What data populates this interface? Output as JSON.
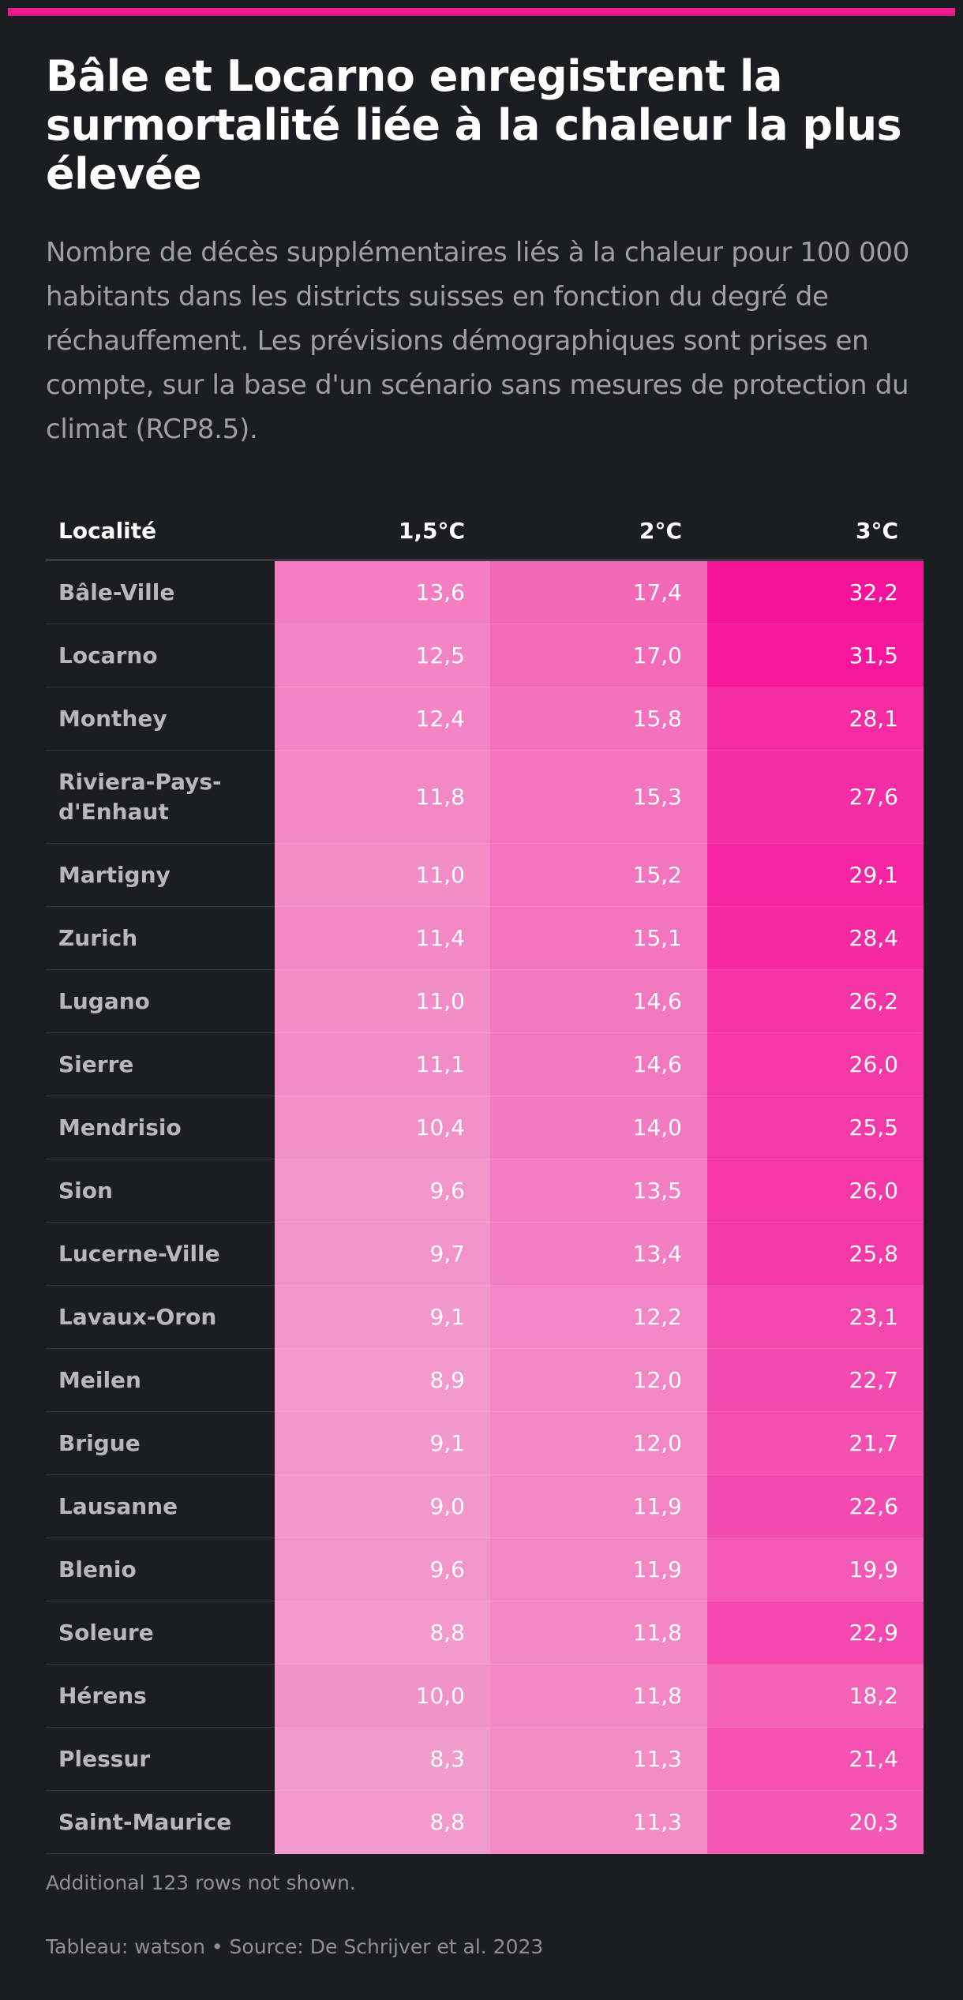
{
  "header": {
    "title": "Bâle et Locarno enregistrent la surmortalité liée à la chaleur la plus élevée",
    "subtitle": "Nombre de décès supplémentaires liés à la chaleur pour 100 000 habitants dans les districts suisses en fonction du degré de réchauffement. Les prévisions démographiques sont prises en compte, sur la base d'un scénario sans mesures de protection du climat (RCP8.5)."
  },
  "colors": {
    "accent": "#ed1a8c",
    "background": "#1c1d20",
    "heat_min": "#f29cce",
    "heat_max": "#f6139a"
  },
  "chart_data": {
    "type": "table",
    "columns": [
      "Localité",
      "1,5°C",
      "2°C",
      "3°C"
    ],
    "rows": [
      {
        "name": "Bâle-Ville",
        "values": [
          "13,6",
          "17,4",
          "32,2"
        ]
      },
      {
        "name": "Locarno",
        "values": [
          "12,5",
          "17,0",
          "31,5"
        ]
      },
      {
        "name": "Monthey",
        "values": [
          "12,4",
          "15,8",
          "28,1"
        ]
      },
      {
        "name": "Riviera-Pays-d'Enhaut",
        "values": [
          "11,8",
          "15,3",
          "27,6"
        ]
      },
      {
        "name": "Martigny",
        "values": [
          "11,0",
          "15,2",
          "29,1"
        ]
      },
      {
        "name": "Zurich",
        "values": [
          "11,4",
          "15,1",
          "28,4"
        ]
      },
      {
        "name": "Lugano",
        "values": [
          "11,0",
          "14,6",
          "26,2"
        ]
      },
      {
        "name": "Sierre",
        "values": [
          "11,1",
          "14,6",
          "26,0"
        ]
      },
      {
        "name": "Mendrisio",
        "values": [
          "10,4",
          "14,0",
          "25,5"
        ]
      },
      {
        "name": "Sion",
        "values": [
          "9,6",
          "13,5",
          "26,0"
        ]
      },
      {
        "name": "Lucerne-Ville",
        "values": [
          "9,7",
          "13,4",
          "25,8"
        ]
      },
      {
        "name": "Lavaux-Oron",
        "values": [
          "9,1",
          "12,2",
          "23,1"
        ]
      },
      {
        "name": "Meilen",
        "values": [
          "8,9",
          "12,0",
          "22,7"
        ]
      },
      {
        "name": "Brigue",
        "values": [
          "9,1",
          "12,0",
          "21,7"
        ]
      },
      {
        "name": "Lausanne",
        "values": [
          "9,0",
          "11,9",
          "22,6"
        ]
      },
      {
        "name": "Blenio",
        "values": [
          "9,6",
          "11,9",
          "19,9"
        ]
      },
      {
        "name": "Soleure",
        "values": [
          "8,8",
          "11,8",
          "22,9"
        ]
      },
      {
        "name": "Hérens",
        "values": [
          "10,0",
          "11,8",
          "18,2"
        ]
      },
      {
        "name": "Plessur",
        "values": [
          "8,3",
          "11,3",
          "21,4"
        ]
      },
      {
        "name": "Saint-Maurice",
        "values": [
          "8,8",
          "11,3",
          "20,3"
        ]
      }
    ]
  },
  "footer": {
    "rows_note": "Additional 123 rows not shown.",
    "source": "Tableau: watson • Source: De Schrijver et al. 2023"
  }
}
